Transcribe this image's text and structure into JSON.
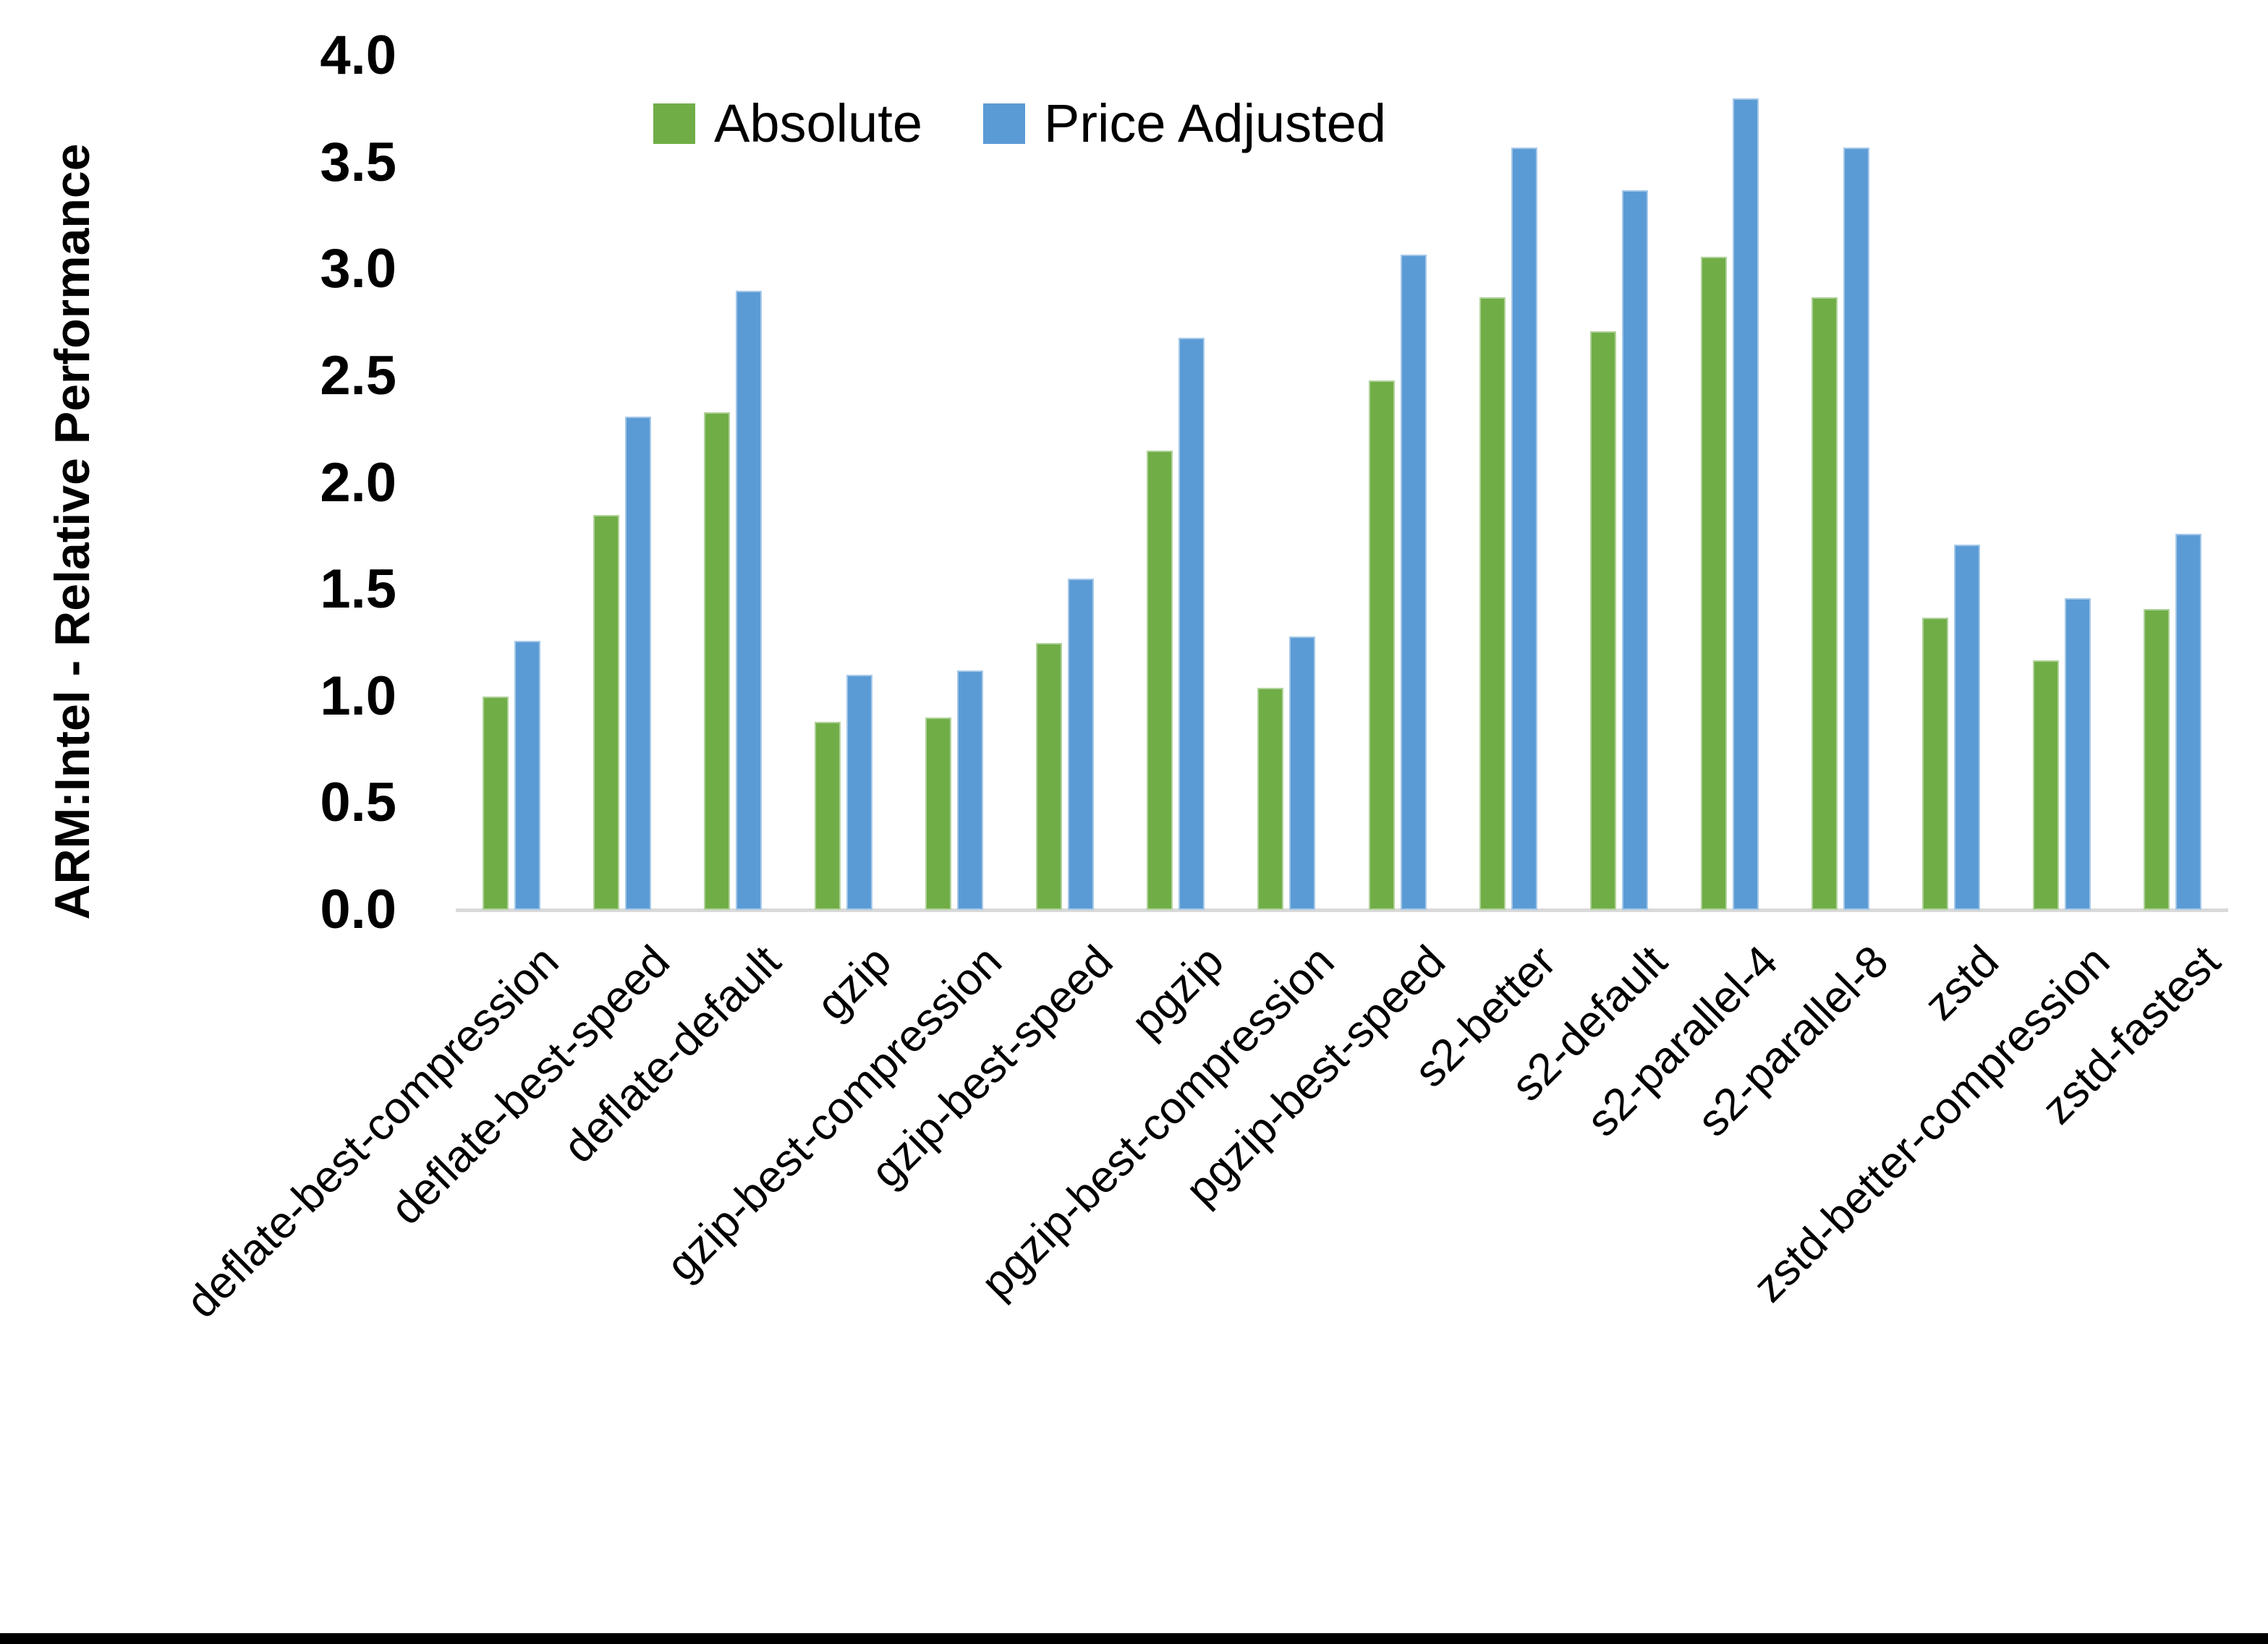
{
  "figure": {
    "background_color": "#FFFFFF",
    "bottom_border_color": "#000000",
    "axis_line_color": "#D9D9D9",
    "text_color": "#000000"
  },
  "chart_data": {
    "type": "bar",
    "title": "",
    "xlabel": "",
    "ylabel": "ARM:Intel - Relative Performance",
    "ylim": [
      0.0,
      4.0
    ],
    "ytick_step": 0.5,
    "yticks": [
      "4.0",
      "3.5",
      "3.0",
      "2.5",
      "2.0",
      "1.5",
      "1.0",
      "0.5",
      "0.0"
    ],
    "grid": false,
    "legend_position": "top-center",
    "categories": [
      "deflate-best-compression",
      "deflate-best-speed",
      "deflate-default",
      "gzip",
      "gzip-best-compression",
      "gzip-best-speed",
      "pgzip",
      "pgzip-best-compression",
      "pgzip-best-speed",
      "s2-better",
      "s2-default",
      "s2-parallel-4",
      "s2-parallel-8",
      "zstd",
      "zstd-better-compression",
      "zstd-fastest"
    ],
    "series": [
      {
        "name": "Absolute",
        "color": "#70AD47",
        "values": [
          1.0,
          1.85,
          2.33,
          0.88,
          0.9,
          1.25,
          2.15,
          1.04,
          2.48,
          2.87,
          2.71,
          3.06,
          2.87,
          1.37,
          1.17,
          1.41
        ]
      },
      {
        "name": "Price Adjusted",
        "color": "#5B9BD5",
        "values": [
          1.26,
          2.31,
          2.9,
          1.1,
          1.12,
          1.55,
          2.68,
          1.28,
          3.07,
          3.57,
          3.37,
          3.8,
          3.57,
          1.71,
          1.46,
          1.76
        ]
      }
    ]
  }
}
